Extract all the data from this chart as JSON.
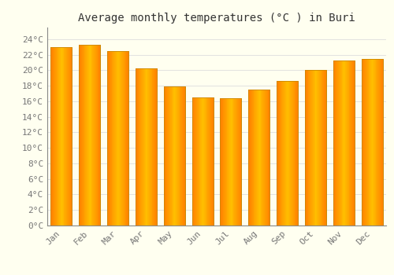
{
  "months": [
    "Jan",
    "Feb",
    "Mar",
    "Apr",
    "May",
    "Jun",
    "Jul",
    "Aug",
    "Sep",
    "Oct",
    "Nov",
    "Dec"
  ],
  "values": [
    23.0,
    23.3,
    22.5,
    20.2,
    17.9,
    16.5,
    16.4,
    17.5,
    18.6,
    20.0,
    21.3,
    21.5
  ],
  "bar_color": "#FFA500",
  "bar_edge_color": "#CC8800",
  "background_color": "#FFFFF0",
  "grid_color": "#DDDDDD",
  "title": "Average monthly temperatures (°C ) in Buri",
  "title_fontsize": 10,
  "tick_label_fontsize": 8,
  "ytick_labels": [
    "0°C",
    "2°C",
    "4°C",
    "6°C",
    "8°C",
    "10°C",
    "12°C",
    "14°C",
    "16°C",
    "18°C",
    "20°C",
    "22°C",
    "24°C"
  ],
  "ytick_values": [
    0,
    2,
    4,
    6,
    8,
    10,
    12,
    14,
    16,
    18,
    20,
    22,
    24
  ],
  "ylim": [
    0,
    25.5
  ],
  "bar_width": 0.75
}
